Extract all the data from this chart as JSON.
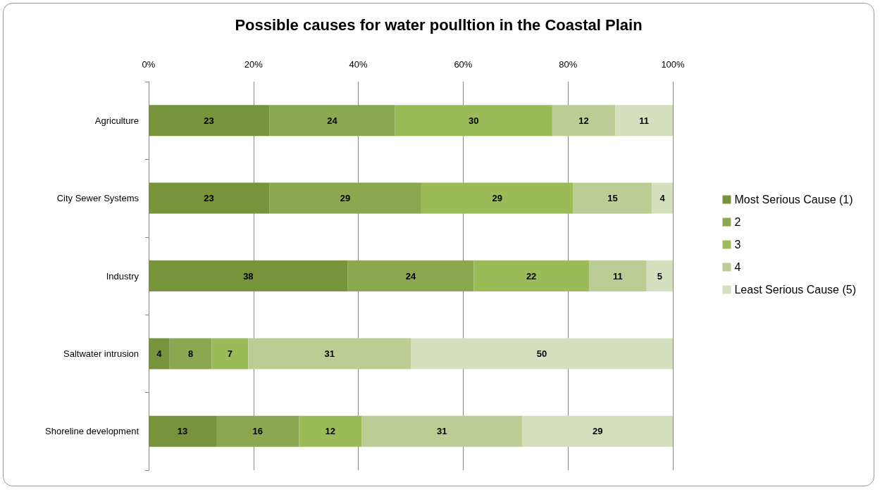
{
  "chart_data": {
    "type": "bar",
    "title": "Possible causes for water poulltion in the Coastal Plain",
    "orientation": "horizontal",
    "stacked": true,
    "categories": [
      "Agriculture",
      "City Sewer Systems",
      "Industry",
      "Saltwater intrusion",
      "Shoreline development"
    ],
    "series": [
      {
        "name": "Most Serious Cause (1)",
        "color": "#77933c",
        "values": [
          23,
          23,
          38,
          4,
          12.9
        ],
        "value_labels": [
          "23",
          "23",
          "38",
          "4",
          "13"
        ]
      },
      {
        "name": "2",
        "color": "#8ba74f",
        "values": [
          24,
          29,
          24,
          8,
          15.8
        ],
        "value_labels": [
          "24",
          "29",
          "24",
          "8",
          "16"
        ]
      },
      {
        "name": "3",
        "color": "#9bbb59",
        "values": [
          30,
          29,
          22,
          7,
          11.9
        ],
        "value_labels": [
          "30",
          "29",
          "22",
          "7",
          "12"
        ]
      },
      {
        "name": "4",
        "color": "#bacd95",
        "values": [
          12,
          15,
          11,
          31,
          30.7
        ],
        "value_labels": [
          "12",
          "15",
          "11",
          "31",
          "31"
        ]
      },
      {
        "name": "Least Serious Cause (5)",
        "color": "#d3dfbd",
        "values": [
          11,
          4,
          5,
          50,
          28.7
        ],
        "value_labels": [
          "11",
          "4",
          "5",
          "50",
          "29"
        ]
      }
    ],
    "xlim": [
      0,
      100
    ],
    "xticks": [
      {
        "value": 0,
        "label": "0%"
      },
      {
        "value": 20,
        "label": "20%"
      },
      {
        "value": 40,
        "label": "40%"
      },
      {
        "value": 60,
        "label": "60%"
      },
      {
        "value": 80,
        "label": "80%"
      },
      {
        "value": 100,
        "label": "100%"
      }
    ],
    "grid": "x",
    "legend": "right"
  }
}
